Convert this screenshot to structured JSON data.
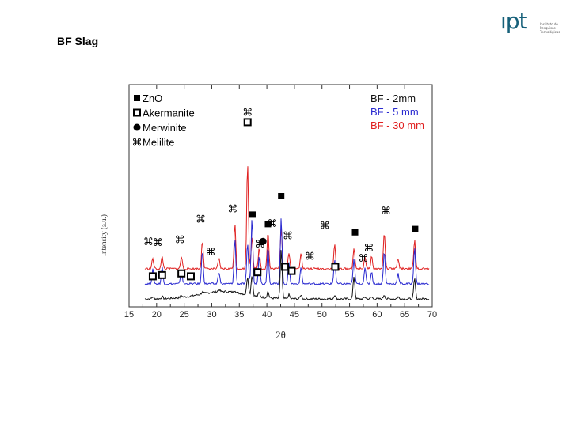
{
  "slide": {
    "title": "BF Slag"
  },
  "logo": {
    "mark": "ıpt",
    "lines": [
      "Instituto de",
      "Pesquisas",
      "Tecnológicas"
    ]
  },
  "chart_data": {
    "type": "line",
    "xlabel": "2θ",
    "ylabel": "Intensity (a.u.)",
    "xlim": [
      15,
      70
    ],
    "xticks": [
      15,
      20,
      25,
      30,
      35,
      40,
      45,
      50,
      55,
      60,
      65,
      70
    ],
    "grid": false,
    "legend_phases": [
      {
        "label": "ZnO",
        "marker": "filled-square"
      },
      {
        "label": "Akermanite",
        "marker": "open-square"
      },
      {
        "label": "Merwinite",
        "marker": "filled-circle"
      },
      {
        "label": "Melilite",
        "marker": "command"
      }
    ],
    "series": [
      {
        "name": "BF - 2mm",
        "color": "#111111",
        "baseline": 0
      },
      {
        "name": "BF - 5 mm",
        "color": "#2a2ad0",
        "baseline": 1
      },
      {
        "name": "BF - 30 mm",
        "color": "#e02020",
        "baseline": 2
      }
    ],
    "peaks": [
      {
        "x": 19.3,
        "h": [
          0.05,
          0.35,
          0.25
        ]
      },
      {
        "x": 21.0,
        "h": [
          0.05,
          0.4,
          0.3
        ]
      },
      {
        "x": 24.5,
        "h": [
          0.05,
          0.35,
          0.3
        ]
      },
      {
        "x": 28.3,
        "h": [
          0.05,
          0.8,
          0.7
        ]
      },
      {
        "x": 31.3,
        "h": [
          0.05,
          0.3,
          0.25
        ]
      },
      {
        "x": 34.2,
        "h": [
          0.05,
          1.1,
          1.1
        ]
      },
      {
        "x": 36.5,
        "h": [
          0.45,
          1.0,
          2.6
        ]
      },
      {
        "x": 37.3,
        "h": [
          0.5,
          1.6,
          0.8
        ]
      },
      {
        "x": 38.6,
        "h": [
          0.1,
          0.7,
          0.5
        ]
      },
      {
        "x": 40.2,
        "h": [
          0.15,
          0.9,
          0.9
        ]
      },
      {
        "x": 42.6,
        "h": [
          1.2,
          1.6,
          1.0
        ]
      },
      {
        "x": 44.0,
        "h": [
          0.1,
          0.5,
          0.4
        ]
      },
      {
        "x": 46.2,
        "h": [
          0.1,
          0.4,
          0.4
        ]
      },
      {
        "x": 52.3,
        "h": [
          0.1,
          0.6,
          0.6
        ]
      },
      {
        "x": 55.8,
        "h": [
          0.55,
          0.6,
          0.5
        ]
      },
      {
        "x": 57.8,
        "h": [
          0.05,
          0.4,
          0.3
        ]
      },
      {
        "x": 59.0,
        "h": [
          0.05,
          0.3,
          0.3
        ]
      },
      {
        "x": 61.3,
        "h": [
          0.1,
          0.8,
          0.9
        ]
      },
      {
        "x": 63.8,
        "h": [
          0.05,
          0.25,
          0.25
        ]
      },
      {
        "x": 66.8,
        "h": [
          0.5,
          0.9,
          0.7
        ]
      }
    ],
    "markers": [
      {
        "type": "ZnO",
        "x": 37.4,
        "level": 2.05
      },
      {
        "type": "ZnO",
        "x": 40.2,
        "level": 1.82
      },
      {
        "type": "ZnO",
        "x": 42.6,
        "level": 2.5
      },
      {
        "type": "ZnO",
        "x": 56.0,
        "level": 1.62
      },
      {
        "type": "ZnO",
        "x": 66.9,
        "level": 1.7
      },
      {
        "type": "Akermanite",
        "x": 36.5,
        "level": 4.3
      },
      {
        "type": "Akermanite",
        "x": 19.3,
        "level": 0.55
      },
      {
        "type": "Akermanite",
        "x": 21.0,
        "level": 0.58
      },
      {
        "type": "Akermanite",
        "x": 24.5,
        "level": 0.62
      },
      {
        "type": "Akermanite",
        "x": 26.2,
        "level": 0.55
      },
      {
        "type": "Akermanite",
        "x": 38.3,
        "level": 0.65
      },
      {
        "type": "Akermanite",
        "x": 43.3,
        "level": 0.78
      },
      {
        "type": "Akermanite",
        "x": 44.5,
        "level": 0.68
      },
      {
        "type": "Akermanite",
        "x": 52.4,
        "level": 0.78
      },
      {
        "type": "Merwinite",
        "x": 39.3,
        "level": 1.4
      },
      {
        "type": "Melilite",
        "x": 36.5,
        "level": 4.55
      },
      {
        "type": "Melilite",
        "x": 18.5,
        "level": 1.4
      },
      {
        "type": "Melilite",
        "x": 20.2,
        "level": 1.38
      },
      {
        "type": "Melilite",
        "x": 24.2,
        "level": 1.45
      },
      {
        "type": "Melilite",
        "x": 28.0,
        "level": 1.95
      },
      {
        "type": "Melilite",
        "x": 29.8,
        "level": 1.15
      },
      {
        "type": "Melilite",
        "x": 33.8,
        "level": 2.2
      },
      {
        "type": "Melilite",
        "x": 38.8,
        "level": 1.35
      },
      {
        "type": "Melilite",
        "x": 41.0,
        "level": 1.85
      },
      {
        "type": "Melilite",
        "x": 43.8,
        "level": 1.55
      },
      {
        "type": "Melilite",
        "x": 47.8,
        "level": 1.05
      },
      {
        "type": "Melilite",
        "x": 50.5,
        "level": 1.8
      },
      {
        "type": "Melilite",
        "x": 57.5,
        "level": 1.0
      },
      {
        "type": "Melilite",
        "x": 58.5,
        "level": 1.25
      },
      {
        "type": "Melilite",
        "x": 61.6,
        "level": 2.15
      }
    ]
  }
}
